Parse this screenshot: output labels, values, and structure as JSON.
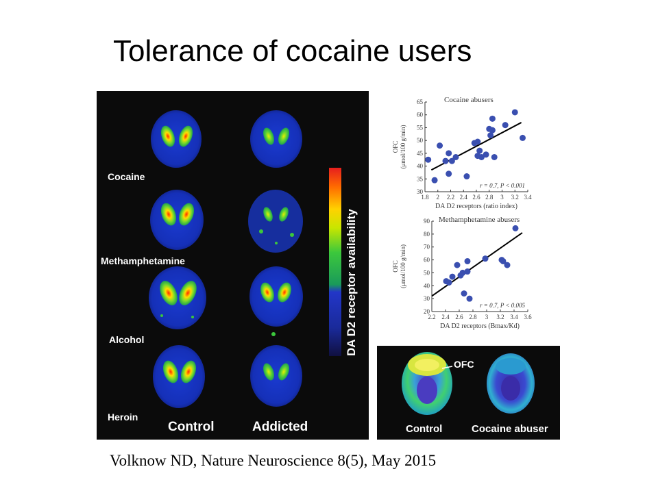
{
  "title": "Tolerance of cocaine users",
  "citation": "Volknow ND, Nature Neuroscience 8(5), May 2015",
  "brain_panel": {
    "row_labels": [
      "Cocaine",
      "Methamphetamine",
      "Alcohol",
      "Heroin"
    ],
    "col_labels": [
      "Control",
      "Addicted"
    ],
    "colorbar_label": "DA D2 receptor availability"
  },
  "pet_panel": {
    "labels": [
      "Control",
      "Cocaine abuser"
    ],
    "callout": "OFC"
  },
  "chart_data": [
    {
      "type": "scatter",
      "title": "Cocaine abusers",
      "xlabel": "DA D2 receptors (ratio index)",
      "ylabel": "OFC (μmol/100 g/min)",
      "xlim": [
        1.8,
        3.4
      ],
      "ylim": [
        30,
        65
      ],
      "xticks": [
        "1.8",
        "2",
        "2.2",
        "2.4",
        "2.6",
        "2.8",
        "3",
        "3.2",
        "3.4"
      ],
      "yticks": [
        "30",
        "35",
        "40",
        "45",
        "50",
        "55",
        "60",
        "65"
      ],
      "annotation": "r = 0.7, P < 0.001",
      "points": [
        [
          1.85,
          42.5
        ],
        [
          1.95,
          34.5
        ],
        [
          2.03,
          48
        ],
        [
          2.12,
          42
        ],
        [
          2.17,
          45
        ],
        [
          2.17,
          37
        ],
        [
          2.22,
          42
        ],
        [
          2.28,
          43.5
        ],
        [
          2.45,
          36
        ],
        [
          2.57,
          49
        ],
        [
          2.62,
          49.5
        ],
        [
          2.62,
          44
        ],
        [
          2.65,
          46
        ],
        [
          2.68,
          43.5
        ],
        [
          2.75,
          44.5
        ],
        [
          2.8,
          54.5
        ],
        [
          2.82,
          52
        ],
        [
          2.85,
          54
        ],
        [
          2.85,
          58.5
        ],
        [
          2.88,
          43.5
        ],
        [
          3.05,
          56
        ],
        [
          3.2,
          61
        ],
        [
          3.32,
          51
        ]
      ],
      "trend": [
        [
          1.9,
          38.5
        ],
        [
          3.3,
          57
        ]
      ]
    },
    {
      "type": "scatter",
      "title": "Methamphetamine abusers",
      "xlabel": "DA D2 receptors (Bmax/Kd)",
      "ylabel": "OFC (μmol/100 g/min)",
      "xlim": [
        2.2,
        3.6
      ],
      "ylim": [
        20,
        90
      ],
      "xticks": [
        "2.2",
        "2.4",
        "2.6",
        "2.8",
        "3",
        "3.2",
        "3.4",
        "3.6"
      ],
      "yticks": [
        "20",
        "30",
        "40",
        "50",
        "60",
        "70",
        "80",
        "90"
      ],
      "annotation": "r = 0.7, P < 0.005",
      "points": [
        [
          2.41,
          43.5
        ],
        [
          2.45,
          42.5
        ],
        [
          2.5,
          47
        ],
        [
          2.57,
          56
        ],
        [
          2.62,
          48
        ],
        [
          2.65,
          50
        ],
        [
          2.67,
          34
        ],
        [
          2.72,
          51
        ],
        [
          2.72,
          59
        ],
        [
          2.75,
          30
        ],
        [
          2.98,
          61
        ],
        [
          3.22,
          60
        ],
        [
          3.24,
          59
        ],
        [
          3.3,
          56
        ],
        [
          3.42,
          84.5
        ]
      ],
      "trend": [
        [
          2.2,
          32
        ],
        [
          3.52,
          81
        ]
      ]
    }
  ]
}
